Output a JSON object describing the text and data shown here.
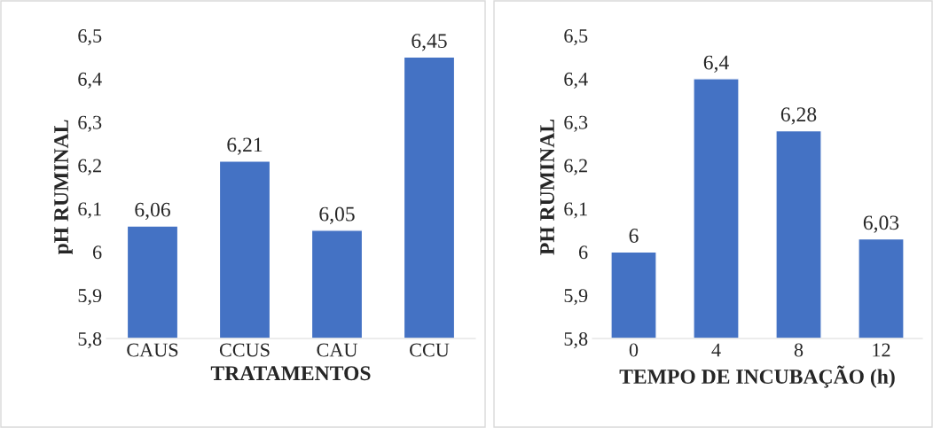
{
  "chart_data": [
    {
      "type": "bar",
      "ylabel": "pH RUMINAL",
      "xlabel": "TRATAMENTOS",
      "categories": [
        "CAUS",
        "CCUS",
        "CAU",
        "CCU"
      ],
      "values": [
        6.06,
        6.21,
        6.05,
        6.45
      ],
      "value_labels": [
        "6,06",
        "6,21",
        "6,05",
        "6,45"
      ],
      "color": "#4472c4",
      "ylim": [
        5.8,
        6.5
      ],
      "yticks": [
        {
          "value": 5.8,
          "label": "5,8"
        },
        {
          "value": 5.9,
          "label": "5,9"
        },
        {
          "value": 6,
          "label": "6"
        },
        {
          "value": 6.1,
          "label": "6,1"
        },
        {
          "value": 6.2,
          "label": "6,2"
        },
        {
          "value": 6.3,
          "label": "6,3"
        },
        {
          "value": 6.4,
          "label": "6,4"
        },
        {
          "value": 6.5,
          "label": "6,5"
        }
      ],
      "grid": false,
      "legend": false
    },
    {
      "type": "bar",
      "ylabel": "PH RUMINAL",
      "xlabel": "TEMPO DE INCUBAÇÃO (h)",
      "categories": [
        "0",
        "4",
        "8",
        "12"
      ],
      "values": [
        6.0,
        6.4,
        6.28,
        6.03
      ],
      "value_labels": [
        "6",
        "6,4",
        "6,28",
        "6,03"
      ],
      "color": "#4472c4",
      "ylim": [
        5.8,
        6.5
      ],
      "yticks": [
        {
          "value": 5.8,
          "label": "5,8"
        },
        {
          "value": 5.9,
          "label": "5,9"
        },
        {
          "value": 6,
          "label": "6"
        },
        {
          "value": 6.1,
          "label": "6,1"
        },
        {
          "value": 6.2,
          "label": "6,2"
        },
        {
          "value": 6.3,
          "label": "6,3"
        },
        {
          "value": 6.4,
          "label": "6,4"
        },
        {
          "value": 6.5,
          "label": "6,5"
        }
      ],
      "grid": false,
      "legend": false
    }
  ]
}
